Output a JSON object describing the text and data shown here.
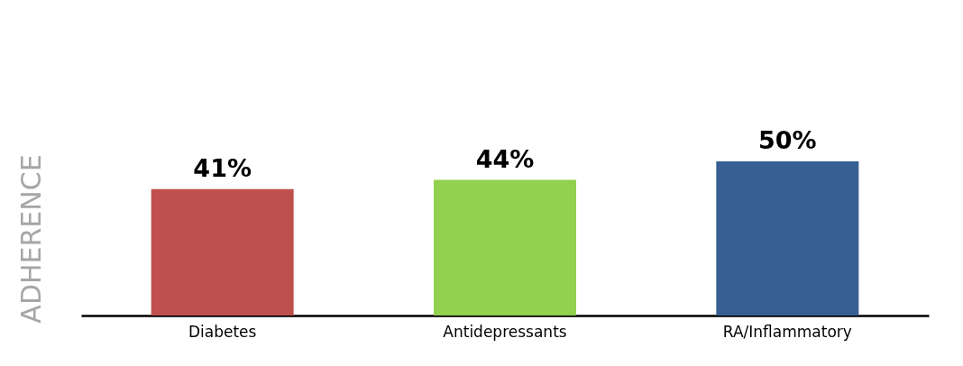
{
  "chart_data": {
    "type": "bar",
    "ylabel": "ADHERENCE",
    "categories": [
      "Diabetes",
      "Antidepressants",
      "RA/Inflammatory"
    ],
    "values": [
      41,
      44,
      50
    ],
    "colors": [
      "#c0504d",
      "#92d050",
      "#376092"
    ],
    "value_labels": [
      "41%",
      "44%",
      "50%"
    ],
    "tick_labels": "x",
    "grid": false
  }
}
